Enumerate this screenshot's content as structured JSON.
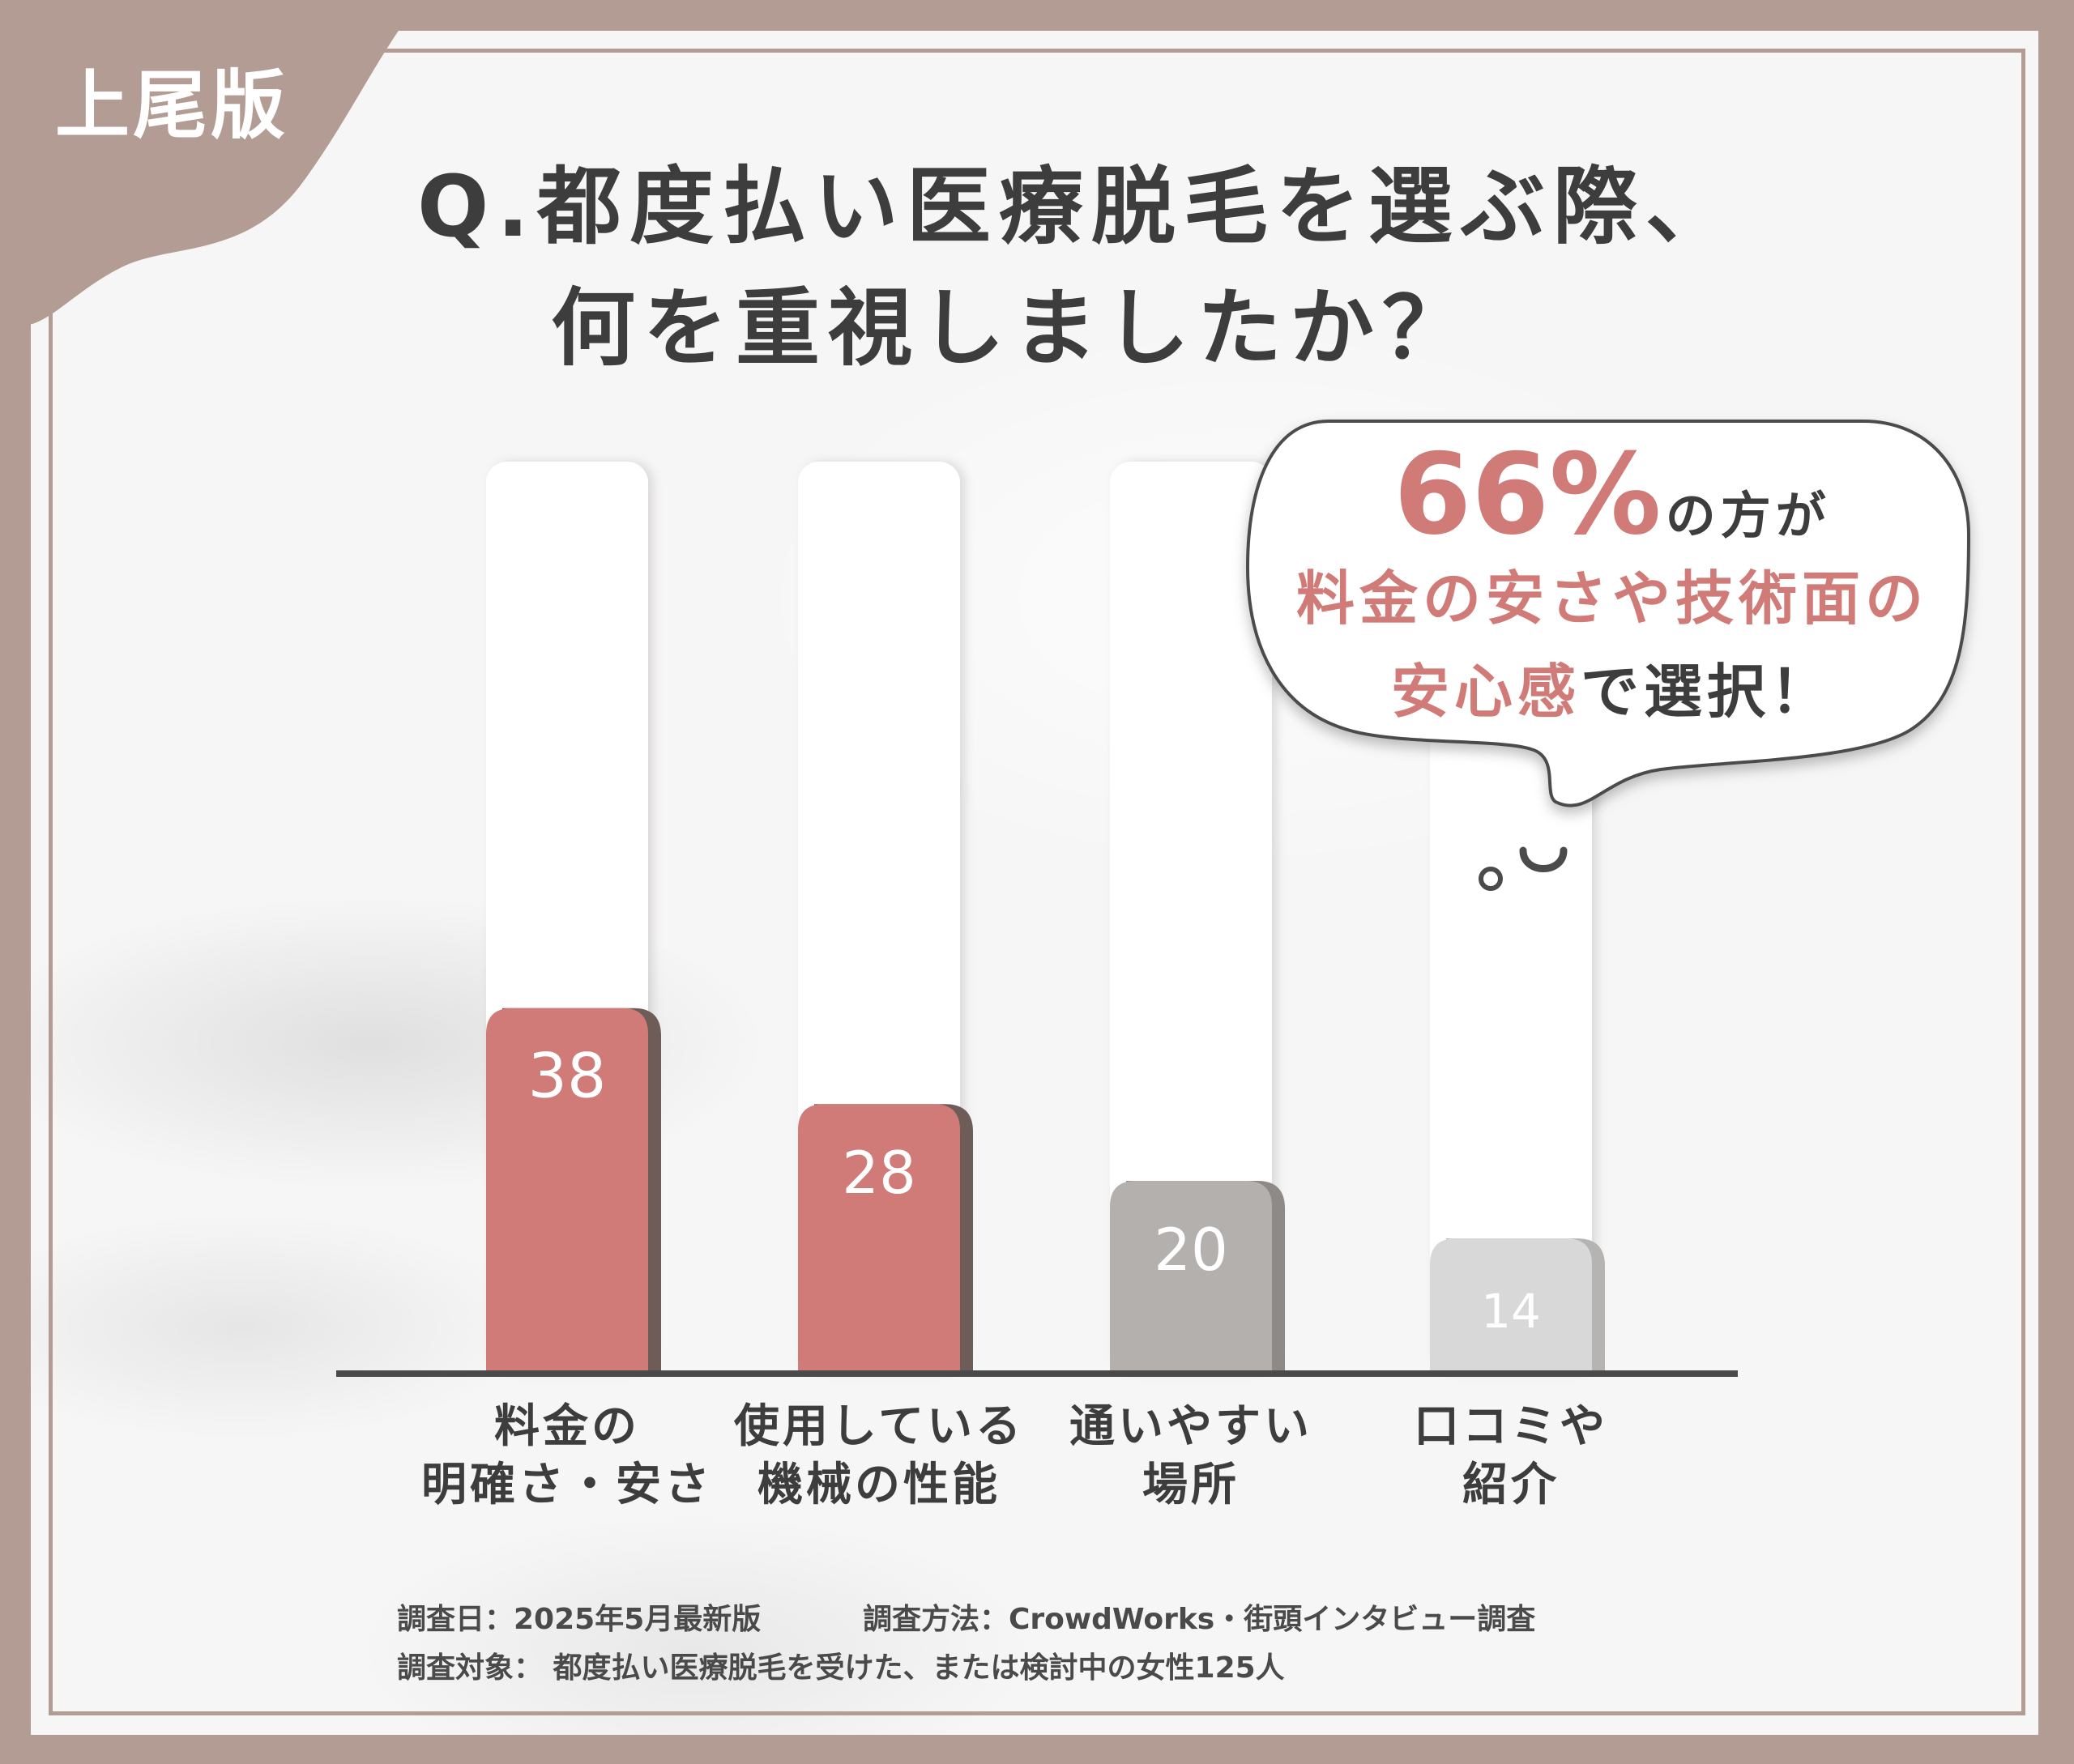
{
  "badge": "上尾版",
  "title": {
    "line1": "Q.都度払い医療脱毛を選ぶ際、",
    "line2": "何を重視しましたか？"
  },
  "callout": {
    "percent": "66%",
    "percent_suffix": "の方が",
    "line2": "料金の安さや技術面の",
    "line3_pink": "安心感",
    "line3_dark": "で選択！"
  },
  "chart_data": {
    "type": "bar",
    "categories": [
      [
        "料金の",
        "明確さ・安さ"
      ],
      [
        "使用している",
        "機械の性能"
      ],
      [
        "通いやすい",
        "場所"
      ],
      [
        "口コミや",
        "紹介"
      ]
    ],
    "values": [
      38,
      28,
      20,
      14
    ],
    "value_labels": [
      "38",
      "28",
      "20",
      "14"
    ],
    "bar_colors": [
      "#d07b77",
      "#d07b77",
      "#b3b0ae",
      "#d9d8d8"
    ],
    "shadow_colors": [
      "#6d5c58",
      "#6d5c58",
      "#8e8a88",
      "#b6b4b3"
    ],
    "ylim": [
      0,
      100
    ],
    "grid": false,
    "title": "",
    "xlabel": "",
    "ylabel": ""
  },
  "footer": {
    "line1_a": "調査日：2025年5月最新版",
    "line1_b": "調査方法：CrowdWorks・街頭インタビュー調査",
    "line2": "調査対象： 都度払い医療脱毛を受けた、または検討中の女性125人"
  }
}
